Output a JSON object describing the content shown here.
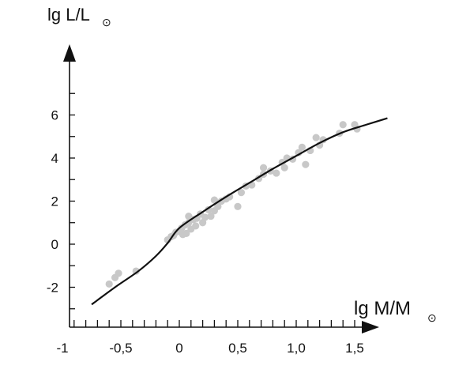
{
  "chart_data": {
    "type": "scatter",
    "title": "",
    "xlabel": "lg M/M",
    "xlabel_symbol": "⊙",
    "ylabel": "lg L/L",
    "ylabel_symbol": "⊙",
    "xlim": [
      -1,
      1.85
    ],
    "ylim": [
      -3.7,
      8
    ],
    "x_ticks": [
      {
        "value": -1,
        "label": "-1"
      },
      {
        "value": -0.5,
        "label": "-0,5"
      },
      {
        "value": 0,
        "label": "0"
      },
      {
        "value": 0.5,
        "label": "0,5"
      },
      {
        "value": 1.0,
        "label": "1,0"
      },
      {
        "value": 1.5,
        "label": "1,5"
      }
    ],
    "x_minor_step": 0.1,
    "y_ticks": [
      {
        "value": -2,
        "label": "-2"
      },
      {
        "value": 0,
        "label": "0"
      },
      {
        "value": 2,
        "label": "2"
      },
      {
        "value": 4,
        "label": "4"
      },
      {
        "value": 6,
        "label": "6"
      }
    ],
    "y_minor_step": 1,
    "grid": false,
    "colors": {
      "points": "#c8c8c8",
      "curve": "#111111",
      "axis": "#111111"
    },
    "series": [
      {
        "kind": "scatter",
        "points": [
          [
            -0.6,
            -1.85
          ],
          [
            -0.55,
            -1.55
          ],
          [
            -0.52,
            -1.35
          ],
          [
            -0.37,
            -1.25
          ],
          [
            -0.1,
            0.2
          ],
          [
            -0.07,
            0.35
          ],
          [
            -0.05,
            0.4
          ],
          [
            -0.03,
            0.55
          ],
          [
            0.0,
            0.6
          ],
          [
            0.02,
            0.75
          ],
          [
            0.03,
            0.45
          ],
          [
            0.05,
            0.9
          ],
          [
            0.06,
            0.5
          ],
          [
            0.08,
            1.0
          ],
          [
            0.08,
            1.3
          ],
          [
            0.1,
            0.7
          ],
          [
            0.12,
            1.15
          ],
          [
            0.14,
            0.85
          ],
          [
            0.15,
            1.2
          ],
          [
            0.18,
            1.4
          ],
          [
            0.2,
            1.0
          ],
          [
            0.22,
            1.25
          ],
          [
            0.25,
            1.6
          ],
          [
            0.27,
            1.3
          ],
          [
            0.3,
            1.55
          ],
          [
            0.3,
            2.05
          ],
          [
            0.33,
            1.75
          ],
          [
            0.36,
            2.0
          ],
          [
            0.4,
            2.1
          ],
          [
            0.43,
            2.2
          ],
          [
            0.5,
            1.75
          ],
          [
            0.53,
            2.4
          ],
          [
            0.57,
            2.7
          ],
          [
            0.62,
            2.75
          ],
          [
            0.68,
            3.05
          ],
          [
            0.72,
            3.25
          ],
          [
            0.72,
            3.55
          ],
          [
            0.78,
            3.4
          ],
          [
            0.83,
            3.3
          ],
          [
            0.88,
            3.8
          ],
          [
            0.9,
            3.55
          ],
          [
            0.92,
            4.0
          ],
          [
            0.97,
            3.95
          ],
          [
            1.02,
            4.25
          ],
          [
            1.05,
            4.5
          ],
          [
            1.08,
            3.7
          ],
          [
            1.12,
            4.35
          ],
          [
            1.17,
            4.95
          ],
          [
            1.2,
            4.6
          ],
          [
            1.23,
            4.85
          ],
          [
            1.37,
            5.15
          ],
          [
            1.4,
            5.55
          ],
          [
            1.5,
            5.55
          ],
          [
            1.52,
            5.35
          ]
        ]
      },
      {
        "kind": "line",
        "points": [
          [
            -0.75,
            -2.8
          ],
          [
            -0.55,
            -2.0
          ],
          [
            -0.35,
            -1.25
          ],
          [
            -0.2,
            -0.55
          ],
          [
            -0.1,
            0.05
          ],
          [
            0.0,
            0.75
          ],
          [
            0.2,
            1.5
          ],
          [
            0.4,
            2.2
          ],
          [
            0.6,
            2.85
          ],
          [
            0.8,
            3.5
          ],
          [
            1.0,
            4.1
          ],
          [
            1.2,
            4.7
          ],
          [
            1.4,
            5.2
          ],
          [
            1.6,
            5.55
          ],
          [
            1.78,
            5.85
          ]
        ]
      }
    ]
  }
}
